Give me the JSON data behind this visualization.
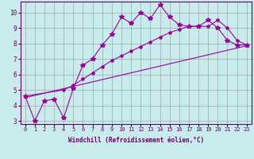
{
  "xlabel": "Windchill (Refroidissement éolien,°C)",
  "background_color": "#c8ecec",
  "line_color": "#990099",
  "xlim": [
    -0.5,
    23.5
  ],
  "ylim": [
    2.8,
    10.7
  ],
  "yticks": [
    3,
    4,
    5,
    6,
    7,
    8,
    9,
    10
  ],
  "xticks": [
    0,
    1,
    2,
    3,
    4,
    5,
    6,
    7,
    8,
    9,
    10,
    11,
    12,
    13,
    14,
    15,
    16,
    17,
    18,
    19,
    20,
    21,
    22,
    23
  ],
  "line1_x": [
    0,
    1,
    2,
    3,
    4,
    5,
    6,
    7,
    8,
    9,
    10,
    11,
    12,
    13,
    14,
    15,
    16,
    17,
    18,
    19,
    20,
    21,
    22,
    23
  ],
  "line1_y": [
    4.6,
    3.0,
    4.3,
    4.4,
    3.2,
    5.1,
    6.6,
    7.0,
    7.9,
    8.6,
    9.7,
    9.3,
    10.0,
    9.6,
    10.5,
    9.7,
    9.2,
    9.1,
    9.1,
    9.5,
    9.0,
    8.2,
    7.9,
    7.9
  ],
  "line2_x": [
    0,
    4,
    5,
    6,
    7,
    8,
    9,
    10,
    11,
    12,
    13,
    14,
    15,
    16,
    17,
    18,
    19,
    20,
    21,
    22,
    23
  ],
  "line2_y": [
    4.6,
    5.0,
    5.3,
    5.7,
    6.1,
    6.5,
    6.9,
    7.2,
    7.5,
    7.8,
    8.1,
    8.4,
    8.7,
    8.9,
    9.1,
    9.1,
    9.1,
    9.5,
    9.0,
    8.2,
    7.9
  ],
  "line3_x": [
    0,
    23
  ],
  "line3_y": [
    4.5,
    7.85
  ]
}
